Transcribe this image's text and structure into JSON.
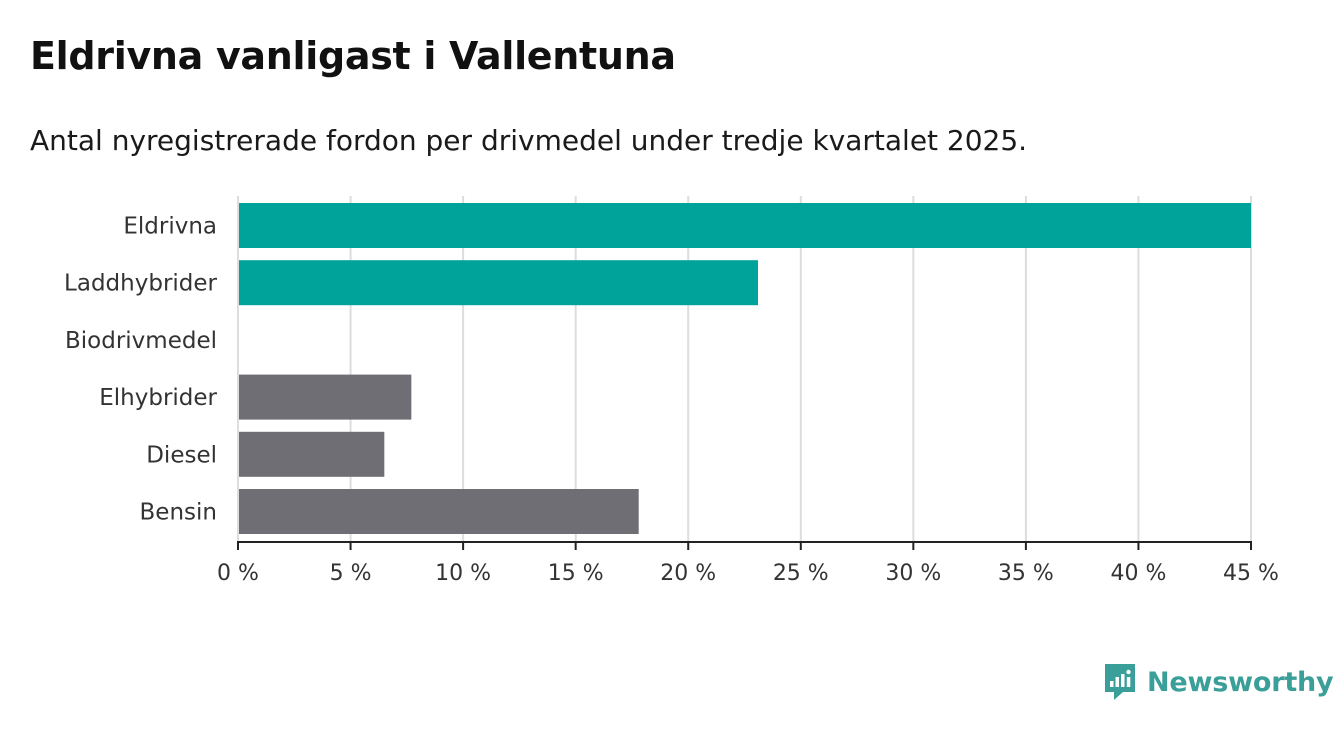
{
  "title": "Eldrivna vanligast i Vallentuna",
  "subtitle": "Antal nyregistrerade fordon per drivmedel under tredje kvartalet 2025.",
  "brand": "Newsworthy",
  "colors": {
    "highlight": "#00a39a",
    "other": "#6f6e75",
    "grid": "#dddddd",
    "axis": "#222222"
  },
  "chart_data": {
    "type": "bar",
    "orientation": "horizontal",
    "categories": [
      "Eldrivna",
      "Laddhybrider",
      "Biodrivmedel",
      "Elhybrider",
      "Diesel",
      "Bensin"
    ],
    "values": [
      45,
      23.1,
      0,
      7.7,
      6.5,
      17.8
    ],
    "highlighted": [
      true,
      true,
      false,
      false,
      false,
      false
    ],
    "xlim": [
      0,
      45
    ],
    "xticks": [
      0,
      5,
      10,
      15,
      20,
      25,
      30,
      35,
      40,
      45
    ],
    "tick_suffix": " %",
    "grid": true
  }
}
